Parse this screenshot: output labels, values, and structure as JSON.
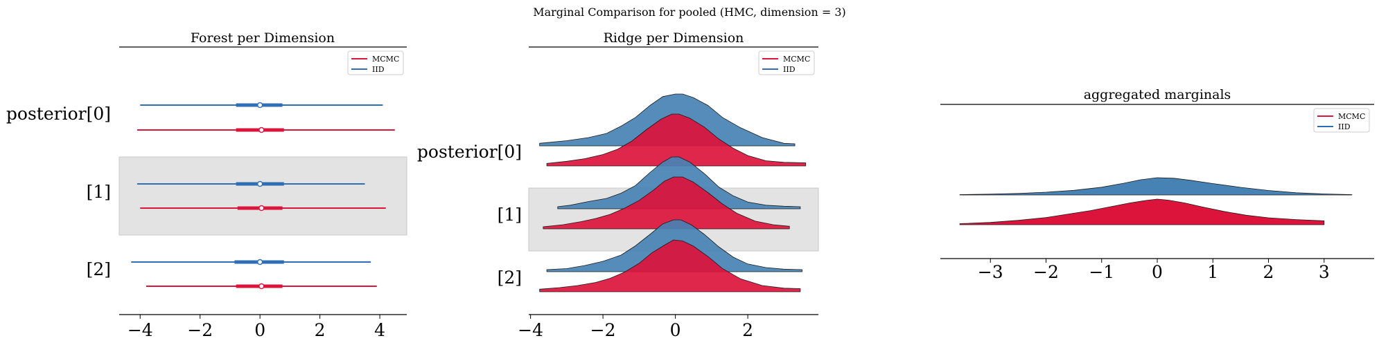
{
  "suptitle": "Marginal Comparison for pooled (HMC, dimension = 3)",
  "colors": {
    "mcmc": "#dc143c",
    "iid": "#2f6eb5",
    "iid_fill": "#4682b4",
    "band": "#e3e3e3"
  },
  "chart_data": [
    {
      "type": "forest",
      "title": "Forest per Dimension",
      "xlim": [
        -4.7,
        4.9
      ],
      "xticks": [
        -4,
        -2,
        0,
        2,
        4
      ],
      "ylabels": [
        "posterior[0]",
        "[1]",
        "[2]"
      ],
      "legend": {
        "position": "top-right",
        "entries": [
          "MCMC",
          "IID"
        ]
      },
      "shaded_rows": [
        1
      ],
      "series": [
        {
          "name": "MCMC",
          "hdi": [
            [
              -4.1,
              4.5
            ],
            [
              -4.0,
              4.2
            ],
            [
              -3.8,
              3.9
            ]
          ],
          "iqr": [
            [
              -0.8,
              0.8
            ],
            [
              -0.75,
              0.75
            ],
            [
              -0.8,
              0.75
            ]
          ],
          "point": [
            0.05,
            0.05,
            0.05
          ]
        },
        {
          "name": "IID",
          "hdi": [
            [
              -4.0,
              4.1
            ],
            [
              -4.1,
              3.5
            ],
            [
              -4.3,
              3.7
            ]
          ],
          "iqr": [
            [
              -0.8,
              0.75
            ],
            [
              -0.8,
              0.8
            ],
            [
              -0.85,
              0.8
            ]
          ],
          "point": [
            0.0,
            0.0,
            0.0
          ]
        }
      ]
    },
    {
      "type": "ridge",
      "title": "Ridge per Dimension",
      "xlim": [
        -4.05,
        3.95
      ],
      "xticks": [
        -4,
        -2,
        0,
        2
      ],
      "ylabels": [
        "posterior[0]",
        "[1]",
        "[2]"
      ],
      "legend": {
        "position": "top-right",
        "entries": [
          "MCMC",
          "IID"
        ]
      },
      "shaded_rows": [
        1
      ],
      "series": [
        {
          "name": "IID",
          "rows": [
            {
              "x": [
                -3.75,
                -3.0,
                -2.4,
                -1.9,
                -1.5,
                -1.1,
                -0.7,
                -0.35,
                0.0,
                0.2,
                0.5,
                0.9,
                1.3,
                1.8,
                2.4,
                3.0,
                3.3
              ],
              "y": [
                0.05,
                0.1,
                0.16,
                0.24,
                0.38,
                0.55,
                0.78,
                0.95,
                1.0,
                1.0,
                0.93,
                0.78,
                0.55,
                0.35,
                0.16,
                0.05,
                0.04
              ]
            },
            {
              "x": [
                -3.25,
                -2.9,
                -2.4,
                -1.9,
                -1.5,
                -1.1,
                -0.7,
                -0.35,
                -0.1,
                0.1,
                0.4,
                0.8,
                1.2,
                1.6,
                2.0,
                2.5,
                3.0,
                3.45
              ],
              "y": [
                0.04,
                0.07,
                0.14,
                0.2,
                0.3,
                0.45,
                0.7,
                0.9,
                1.0,
                1.0,
                0.9,
                0.68,
                0.42,
                0.25,
                0.13,
                0.07,
                0.05,
                0.04
              ]
            },
            {
              "x": [
                -3.55,
                -3.0,
                -2.5,
                -2.0,
                -1.5,
                -1.1,
                -0.7,
                -0.35,
                -0.05,
                0.15,
                0.45,
                0.8,
                1.2,
                1.6,
                2.0,
                2.5,
                3.0,
                3.5
              ],
              "y": [
                0.04,
                0.06,
                0.12,
                0.2,
                0.32,
                0.5,
                0.72,
                0.92,
                1.0,
                1.0,
                0.9,
                0.72,
                0.48,
                0.28,
                0.15,
                0.08,
                0.05,
                0.04
              ]
            }
          ]
        },
        {
          "name": "MCMC",
          "rows": [
            {
              "x": [
                -3.55,
                -3.0,
                -2.5,
                -2.0,
                -1.6,
                -1.2,
                -0.8,
                -0.4,
                -0.1,
                0.1,
                0.4,
                0.8,
                1.2,
                1.6,
                2.0,
                2.5,
                3.0,
                3.6
              ],
              "y": [
                0.05,
                0.09,
                0.14,
                0.22,
                0.32,
                0.48,
                0.7,
                0.9,
                1.0,
                1.0,
                0.92,
                0.75,
                0.52,
                0.34,
                0.2,
                0.1,
                0.07,
                0.06
              ]
            },
            {
              "x": [
                -3.65,
                -3.1,
                -2.6,
                -2.2,
                -1.8,
                -1.4,
                -1.0,
                -0.6,
                -0.3,
                -0.05,
                0.2,
                0.5,
                0.9,
                1.3,
                1.7,
                2.2,
                2.7,
                3.15
              ],
              "y": [
                0.04,
                0.08,
                0.14,
                0.2,
                0.28,
                0.4,
                0.55,
                0.75,
                0.92,
                1.0,
                1.0,
                0.9,
                0.7,
                0.48,
                0.3,
                0.15,
                0.08,
                0.05
              ]
            },
            {
              "x": [
                -3.75,
                -3.2,
                -2.7,
                -2.2,
                -1.8,
                -1.4,
                -1.0,
                -0.65,
                -0.3,
                -0.05,
                0.2,
                0.5,
                0.9,
                1.3,
                1.8,
                2.4,
                3.0,
                3.45
              ],
              "y": [
                0.05,
                0.08,
                0.12,
                0.18,
                0.26,
                0.38,
                0.55,
                0.75,
                0.9,
                1.0,
                0.98,
                0.88,
                0.68,
                0.45,
                0.25,
                0.12,
                0.07,
                0.06
              ]
            }
          ]
        }
      ]
    },
    {
      "type": "area",
      "title": "aggregated marginals",
      "xlim": [
        -3.9,
        3.9
      ],
      "xticks": [
        -3,
        -2,
        -1,
        0,
        1,
        2,
        3
      ],
      "legend": {
        "position": "top-right",
        "entries": [
          "MCMC",
          "IID"
        ]
      },
      "series": [
        {
          "name": "IID",
          "x": [
            -3.55,
            -3.0,
            -2.5,
            -2.0,
            -1.5,
            -1.0,
            -0.6,
            -0.3,
            0.0,
            0.3,
            0.6,
            1.0,
            1.5,
            2.0,
            2.5,
            3.0,
            3.5
          ],
          "y": [
            0.02,
            0.05,
            0.09,
            0.16,
            0.27,
            0.45,
            0.68,
            0.88,
            1.0,
            0.97,
            0.85,
            0.66,
            0.44,
            0.26,
            0.13,
            0.06,
            0.02
          ]
        },
        {
          "name": "MCMC",
          "x": [
            -3.55,
            -3.0,
            -2.5,
            -2.0,
            -1.7,
            -1.2,
            -0.8,
            -0.5,
            -0.2,
            0.0,
            0.2,
            0.5,
            0.8,
            1.2,
            1.6,
            2.0,
            2.5,
            3.0
          ],
          "y": [
            0.04,
            0.09,
            0.17,
            0.28,
            0.38,
            0.55,
            0.72,
            0.85,
            0.95,
            1.0,
            0.96,
            0.85,
            0.7,
            0.52,
            0.37,
            0.27,
            0.2,
            0.15
          ]
        }
      ]
    }
  ]
}
